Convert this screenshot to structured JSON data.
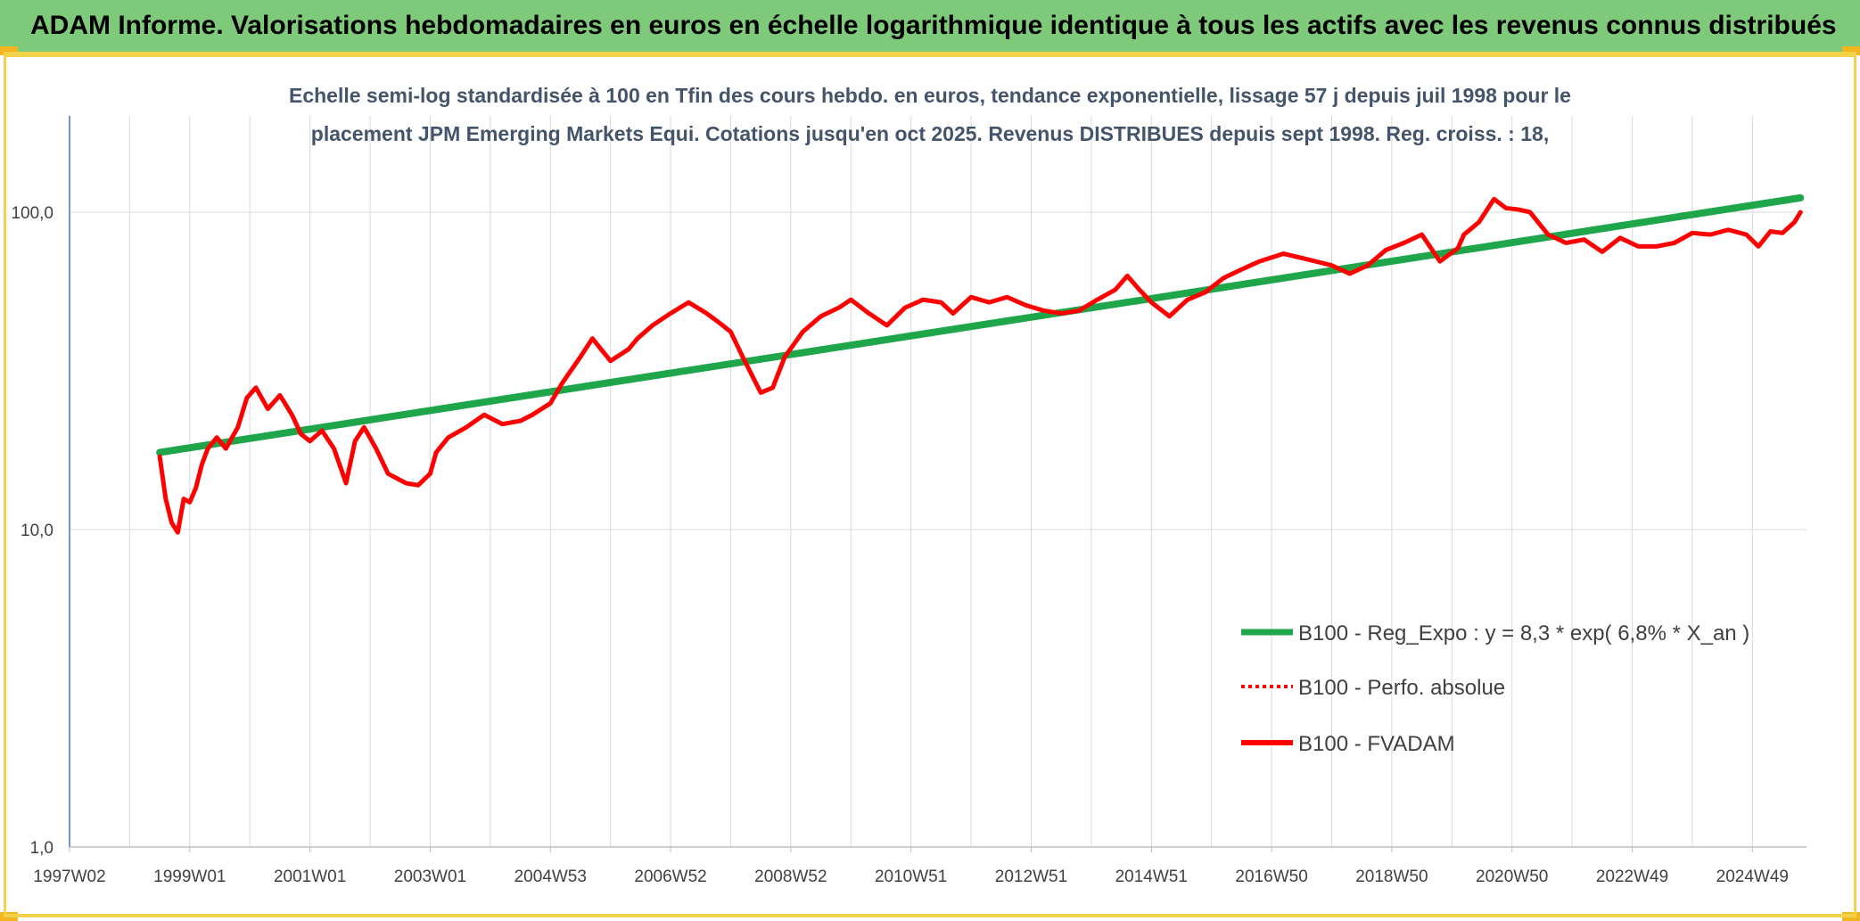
{
  "header": {
    "title": "ADAM Informe. Valorisations hebdomadaires en euros en échelle logarithmique identique à tous les actifs avec les revenus connus distribués"
  },
  "colors": {
    "banner": "#7fc97a",
    "regression": "#1fa64a",
    "fvadam": "#ff0000",
    "perfo": "#ff0000",
    "grid": "#d9d9d9"
  },
  "chart_data": {
    "type": "line",
    "title_lines": [
      "Echelle semi-log standardisée à 100 en Tfin des cours hebdo. en euros, tendance exponentielle, lissage 57 j depuis juil 1998 pour le",
      "placement JPM Emerging Markets Equi. Cotations jusqu'en oct 2025. Revenus DISTRIBUES depuis sept 1998. Reg. croiss. : 18,"
    ],
    "y_scale": "log",
    "ylim": [
      1,
      200
    ],
    "y_ticks": [
      "1,0",
      "10,0",
      "100,0"
    ],
    "y_tick_values": [
      1,
      10,
      100
    ],
    "xlim": [
      1997.0,
      2025.9
    ],
    "x_tick_labels": [
      "1997W02",
      "1999W01",
      "2001W01",
      "2003W01",
      "2004W53",
      "2006W52",
      "2008W52",
      "2010W51",
      "2012W51",
      "2014W51",
      "2016W50",
      "2018W50",
      "2020W50",
      "2022W49",
      "2024W49"
    ],
    "x_tick_values": [
      1997.0,
      1999.0,
      2001.0,
      2003.0,
      2005.0,
      2007.0,
      2009.0,
      2011.0,
      2013.0,
      2015.0,
      2017.0,
      2019.0,
      2021.0,
      2023.0,
      2025.0
    ],
    "grid": true,
    "legend_position": "bottom-right",
    "legend": [
      "B100 - Reg_Expo : y = 8,3 * exp( 6,8% *  X_an )",
      "B100 - Perfo. absolue",
      "B100 - FVADAM"
    ],
    "series": [
      {
        "name": "B100 - Reg_Expo : y = 8,3 * exp( 6,8% *  X_an )",
        "x": [
          1998.5,
          2025.8
        ],
        "y": [
          17.5,
          111
        ]
      },
      {
        "name": "B100 - FVADAM",
        "x": [
          1998.5,
          1998.6,
          1998.7,
          1998.8,
          1998.9,
          1999.0,
          1999.1,
          1999.2,
          1999.3,
          1999.45,
          1999.6,
          1999.8,
          1999.95,
          2000.1,
          2000.3,
          2000.5,
          2000.7,
          2000.85,
          2001.0,
          2001.2,
          2001.4,
          2001.6,
          2001.75,
          2001.9,
          2002.1,
          2002.3,
          2002.6,
          2002.8,
          2003.0,
          2003.1,
          2003.3,
          2003.6,
          2003.9,
          2004.2,
          2004.5,
          2004.7,
          2005.0,
          2005.2,
          2005.5,
          2005.7,
          2006.0,
          2006.3,
          2006.45,
          2006.7,
          2007.0,
          2007.3,
          2007.6,
          2007.8,
          2008.0,
          2008.2,
          2008.5,
          2008.7,
          2008.9,
          2009.2,
          2009.5,
          2009.8,
          2010.0,
          2010.3,
          2010.6,
          2010.9,
          2011.2,
          2011.5,
          2011.7,
          2012.0,
          2012.3,
          2012.6,
          2012.9,
          2013.2,
          2013.5,
          2013.8,
          2014.1,
          2014.4,
          2014.6,
          2014.8,
          2015.0,
          2015.3,
          2015.6,
          2015.9,
          2016.2,
          2016.5,
          2016.8,
          2017.2,
          2017.6,
          2018.0,
          2018.3,
          2018.6,
          2018.9,
          2019.2,
          2019.5,
          2019.8,
          2020.1,
          2020.2,
          2020.45,
          2020.7,
          2020.9,
          2021.1,
          2021.3,
          2021.6,
          2021.9,
          2022.2,
          2022.5,
          2022.8,
          2023.1,
          2023.4,
          2023.7,
          2024.0,
          2024.3,
          2024.6,
          2024.9,
          2025.1,
          2025.3,
          2025.5,
          2025.7,
          2025.8
        ],
        "y": [
          17.0,
          12.5,
          10.5,
          9.8,
          12.5,
          12.2,
          13.5,
          16,
          18,
          19.5,
          18,
          21,
          26,
          28,
          24,
          26.5,
          23,
          20,
          19,
          20.5,
          18,
          14,
          19,
          21,
          18,
          15,
          14,
          13.8,
          15,
          17.5,
          19.5,
          21,
          23,
          21.5,
          22,
          23,
          25,
          29,
          35,
          40,
          34,
          37,
          40,
          44,
          48,
          52,
          48,
          45,
          42,
          35,
          27,
          28,
          35,
          42,
          47,
          50,
          53,
          48,
          44,
          50,
          53,
          52,
          48,
          54,
          52,
          54,
          51,
          49,
          48,
          49,
          53,
          57,
          63,
          57,
          52,
          47,
          53,
          56,
          62,
          66,
          70,
          74,
          71,
          68,
          64,
          68,
          76,
          80,
          85,
          70,
          77,
          85,
          93,
          110,
          103,
          102,
          100,
          85,
          80,
          82,
          75,
          83,
          78,
          78,
          80,
          86,
          85,
          88,
          85,
          78,
          87,
          86,
          93,
          100
        ]
      }
    ]
  }
}
